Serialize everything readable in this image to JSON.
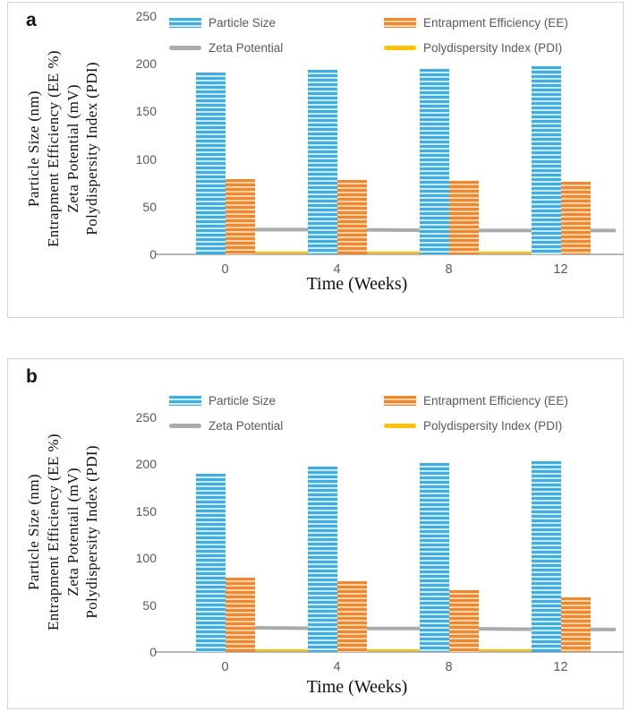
{
  "panels": [
    {
      "letter": "a"
    },
    {
      "letter": "b"
    }
  ],
  "chart_data": [
    {
      "type": "bar",
      "panel": "a",
      "categories": [
        "0",
        "4",
        "8",
        "12"
      ],
      "series": [
        {
          "name": "Particle Size",
          "type": "bar",
          "color": "#3fade2",
          "color_light": "#c9ebf8",
          "values": [
            191,
            194,
            195,
            197
          ]
        },
        {
          "name": "Entrapment Efficiency (EE)",
          "type": "bar",
          "color": "#f0862d",
          "color_light": "#fad3a8",
          "values": [
            79,
            78,
            77,
            76
          ]
        },
        {
          "name": "Zeta Potential",
          "type": "line",
          "color": "#ababab",
          "values": [
            26,
            26,
            25,
            25
          ]
        },
        {
          "name": "Polydispersity Index (PDI)",
          "type": "line",
          "color": "#ffc000",
          "values": [
            1,
            1,
            1,
            1
          ]
        }
      ],
      "xlabel": "Time (Weeks)",
      "ylabel_lines": [
        "Particle Size (nm)",
        "Entrapment Efficiency (EE %)",
        "Zeta Potential (mV)",
        "Polydispersity Index (PDI)"
      ],
      "ylim": [
        0,
        250
      ],
      "yticks": [
        0,
        50,
        100,
        150,
        200,
        250
      ],
      "grid": false,
      "legend_position": "top"
    },
    {
      "type": "bar",
      "panel": "b",
      "categories": [
        "0",
        "4",
        "8",
        "12"
      ],
      "series": [
        {
          "name": "Particle Size",
          "type": "bar",
          "color": "#3fade2",
          "color_light": "#c9ebf8",
          "values": [
            190,
            198,
            201,
            203
          ]
        },
        {
          "name": "Entrapment Efficiency (EE)",
          "type": "bar",
          "color": "#f0862d",
          "color_light": "#fad3a8",
          "values": [
            79,
            75,
            66,
            58
          ]
        },
        {
          "name": "Zeta Potential",
          "type": "line",
          "color": "#ababab",
          "values": [
            26,
            25,
            25,
            24
          ]
        },
        {
          "name": "Polydispersity Index (PDI)",
          "type": "line",
          "color": "#ffc000",
          "values": [
            1,
            1,
            1,
            1
          ]
        }
      ],
      "xlabel": "Time (Weeks)",
      "ylabel_lines": [
        "Particle Size (nm)",
        "Entrapment Efficiency (EE %)",
        "Zeta Potentail (mV)",
        "Polydispersity Index (PDI)"
      ],
      "ylim": [
        0,
        250
      ],
      "yticks": [
        0,
        50,
        100,
        150,
        200,
        250
      ],
      "grid": false,
      "legend_position": "top"
    }
  ]
}
